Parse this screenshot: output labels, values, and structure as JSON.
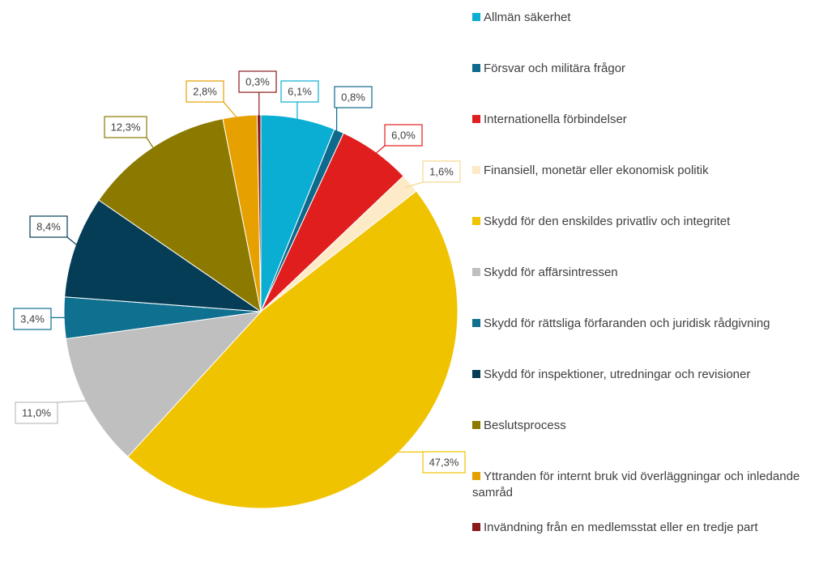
{
  "chart_data": {
    "type": "pie",
    "categories": [
      "Allmän säkerhet",
      "Försvar och militära frågor",
      "Internationella förbindelser",
      "Finansiell, monetär eller ekonomisk politik",
      "Skydd för den enskildes privatliv och integritet",
      "Skydd för affärsintressen",
      "Skydd för rättsliga förfaranden och juridisk rådgivning",
      "Skydd för inspektioner, utredningar och revisioner",
      "Beslutsprocess",
      "Yttranden för internt bruk vid överläggningar och inledande samråd",
      "Invändning från en medlemsstat eller en tredje part"
    ],
    "values": [
      6.1,
      0.8,
      6.0,
      1.6,
      47.3,
      11.0,
      3.4,
      8.4,
      12.3,
      2.8,
      0.3
    ],
    "value_labels": [
      "6,1%",
      "0,8%",
      "6,0%",
      "1,6%",
      "47,3%",
      "11,0%",
      "3,4%",
      "8,4%",
      "12,3%",
      "2,8%",
      "0,3%"
    ],
    "colors": [
      "#0aaed3",
      "#0e6a8c",
      "#e01e1e",
      "#fdebc8",
      "#f0c300",
      "#bfbfbf",
      "#10708f",
      "#053d57",
      "#8c7a00",
      "#e6a000",
      "#8b1a1a"
    ],
    "legend": "right"
  }
}
